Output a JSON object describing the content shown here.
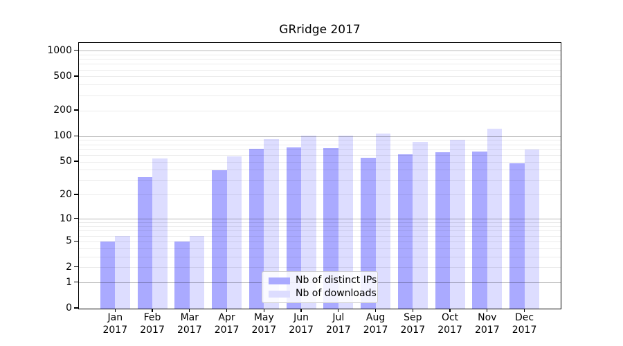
{
  "window": {
    "background": "#ffffff"
  },
  "chart_data": {
    "type": "bar",
    "title": "GRridge 2017",
    "categories": [
      "Jan 2017",
      "Feb 2017",
      "Mar 2017",
      "Apr 2017",
      "May 2017",
      "Jun 2017",
      "Jul 2017",
      "Aug 2017",
      "Sep 2017",
      "Oct 2017",
      "Nov 2017",
      "Dec 2017"
    ],
    "month_labels": [
      "Jan",
      "Feb",
      "Mar",
      "Apr",
      "May",
      "Jun",
      "Jul",
      "Aug",
      "Sep",
      "Oct",
      "Nov",
      "Dec"
    ],
    "year_label": "2017",
    "series": [
      {
        "name": "Nb of distinct IPs",
        "color": "#aaaaff",
        "values": [
          5,
          33,
          5,
          40,
          71,
          75,
          73,
          56,
          62,
          65,
          67,
          48
        ]
      },
      {
        "name": "Nb of downloads",
        "color": "#ddddff",
        "values": [
          6,
          55,
          6,
          58,
          94,
          103,
          102,
          109,
          87,
          91,
          123,
          70
        ]
      }
    ],
    "xlabel": "",
    "ylabel": "",
    "yscale": "log1p",
    "ylim": [
      0,
      1240
    ],
    "ytick_values": [
      1000,
      500,
      200,
      100,
      50,
      20,
      10,
      5,
      2,
      1,
      0
    ],
    "grid": {
      "orientation": "horizontal",
      "major": [
        1,
        10,
        100,
        1000
      ],
      "minor": [
        2,
        3,
        4,
        5,
        6,
        7,
        8,
        9,
        20,
        30,
        40,
        50,
        60,
        70,
        80,
        90,
        200,
        300,
        400,
        500,
        600,
        700,
        800,
        900
      ]
    },
    "legend_position": "inside-bottom-center"
  },
  "colors": {
    "bar_distinct_ips": "#aaaaff",
    "bar_downloads": "#ddddff",
    "axis": "#000000",
    "grid_major": "rgba(0,0,0,0.28)",
    "grid_minor": "rgba(0,0,0,0.08)",
    "legend_border": "#cccccc",
    "legend_background": "rgba(255,255,255,0.85)"
  }
}
